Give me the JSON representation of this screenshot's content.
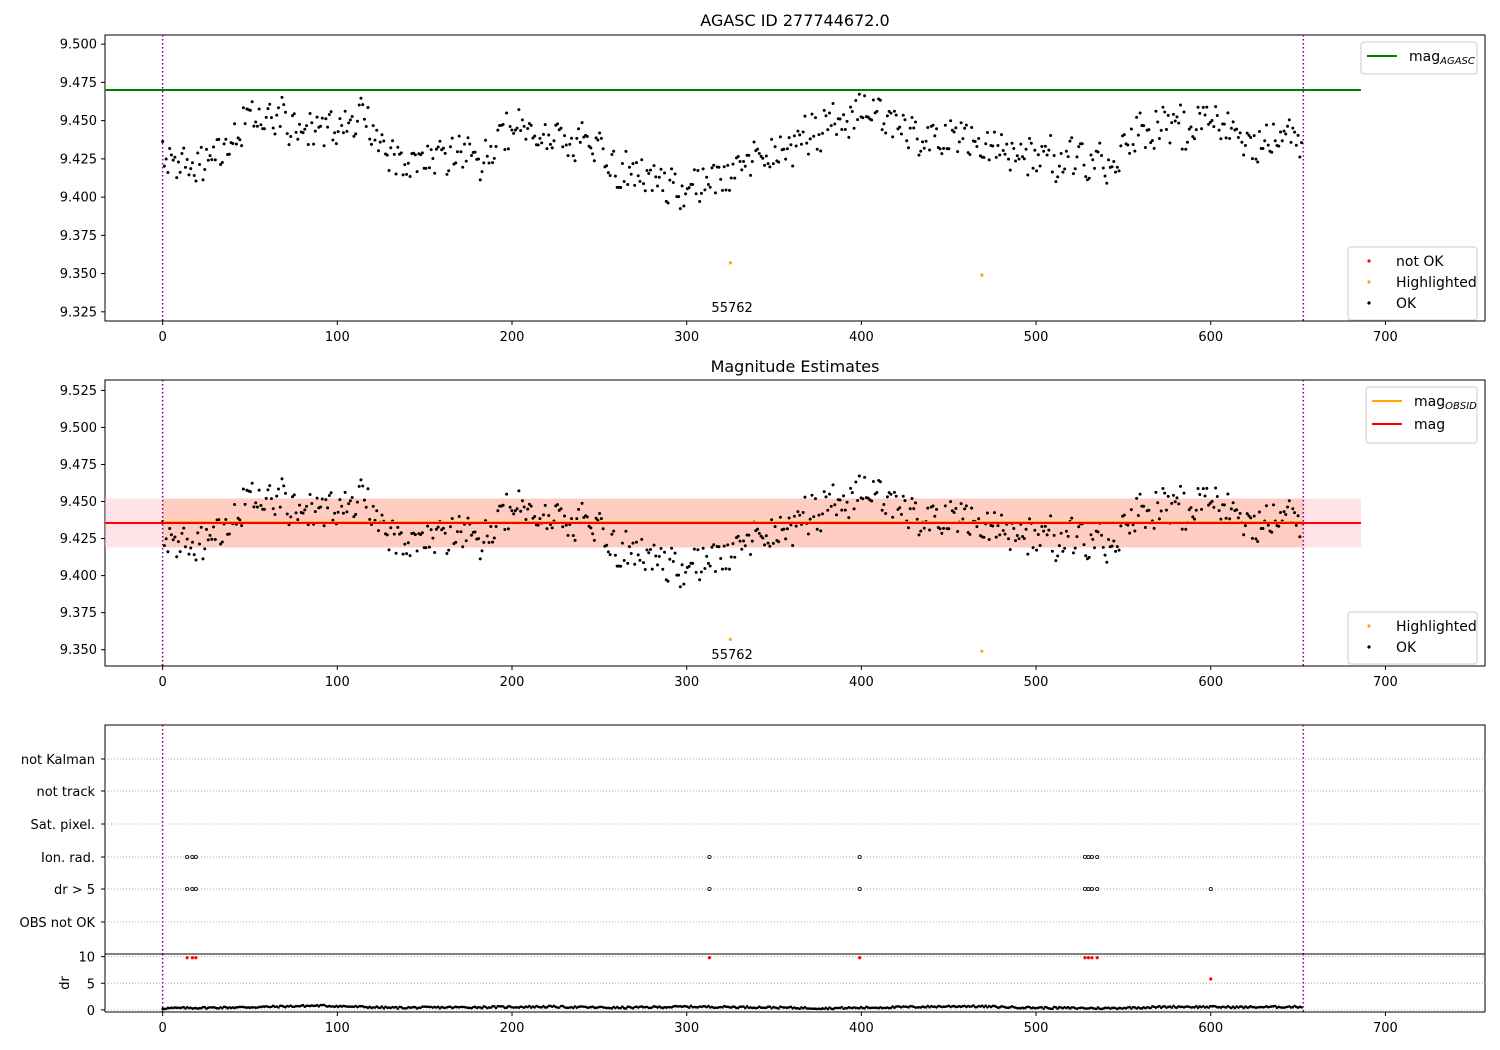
{
  "chart_data": [
    {
      "type": "scatter",
      "title": "AGASC ID 277744672.0",
      "xlim": [
        -33,
        757
      ],
      "ylim": [
        9.319,
        9.506
      ],
      "xticks": [
        0,
        100,
        200,
        300,
        400,
        500,
        600,
        700
      ],
      "yticks": [
        9.325,
        9.35,
        9.375,
        9.4,
        9.425,
        9.45,
        9.475,
        9.5
      ],
      "yticklabels": [
        "9.325",
        "9.350",
        "9.375",
        "9.400",
        "9.425",
        "9.450",
        "9.475",
        "9.500"
      ],
      "vlines": [
        0,
        653
      ],
      "vline_color": "#800080",
      "hline": {
        "label": "mag",
        "label_sub": "AGASC",
        "y": 9.47,
        "x_range": [
          -33,
          686
        ],
        "color": "#008000"
      },
      "annotation": {
        "text": "55762",
        "x": 326,
        "y": 9.328
      },
      "highlighted_points": [
        {
          "x": 325,
          "y": 9.357
        },
        {
          "x": 469,
          "y": 9.349
        }
      ],
      "legend_upper": [
        {
          "label": "mag",
          "sub": "AGASC",
          "kind": "line",
          "color": "#008000"
        }
      ],
      "legend_lower": [
        {
          "label": "not OK",
          "kind": "marker",
          "color": "#ff0000"
        },
        {
          "label": "Highlighted",
          "kind": "marker",
          "color": "#ffa500"
        },
        {
          "label": "OK",
          "kind": "marker",
          "color": "#000000"
        }
      ],
      "series": [
        {
          "name": "OK",
          "color": "#000000",
          "keypoints_x": [
            0,
            10,
            20,
            30,
            45,
            55,
            65,
            80,
            95,
            110,
            125,
            140,
            160,
            180,
            200,
            220,
            240,
            260,
            280,
            300,
            320,
            340,
            360,
            380,
            400,
            420,
            440,
            460,
            480,
            500,
            520,
            540,
            560,
            580,
            600,
            620,
            640,
            653
          ],
          "keypoints_y": [
            9.425,
            9.42,
            9.42,
            9.425,
            9.445,
            9.455,
            9.455,
            9.445,
            9.445,
            9.455,
            9.435,
            9.42,
            9.43,
            9.425,
            9.445,
            9.44,
            9.435,
            9.42,
            9.41,
            9.405,
            9.415,
            9.425,
            9.435,
            9.445,
            9.455,
            9.45,
            9.435,
            9.44,
            9.43,
            9.425,
            9.425,
            9.42,
            9.445,
            9.445,
            9.45,
            9.435,
            9.44,
            9.44
          ],
          "spread": 0.012,
          "n_points": 650
        }
      ]
    },
    {
      "type": "scatter",
      "title": "Magnitude Estimates",
      "xlim": [
        -33,
        757
      ],
      "ylim": [
        9.339,
        9.532
      ],
      "xticks": [
        0,
        100,
        200,
        300,
        400,
        500,
        600,
        700
      ],
      "yticks": [
        9.35,
        9.375,
        9.4,
        9.425,
        9.45,
        9.475,
        9.5,
        9.525
      ],
      "yticklabels": [
        "9.350",
        "9.375",
        "9.400",
        "9.425",
        "9.450",
        "9.475",
        "9.500",
        "9.525"
      ],
      "vlines": [
        0,
        653
      ],
      "vline_color": "#800080",
      "hline": {
        "label": "mag",
        "y": 9.4355,
        "x_range": [
          -33,
          686
        ],
        "color": "#ff0000"
      },
      "band_mag": {
        "y_low": 9.419,
        "y_high": 9.452,
        "color": "#ffc0cb"
      },
      "band_obsid": {
        "y_low": 9.419,
        "y_high": 9.452,
        "x_range": [
          0,
          653
        ],
        "color": "#ffa07a"
      },
      "obsid_line": {
        "label": "mag",
        "label_sub": "OBSID",
        "y": 9.436,
        "x_range": [
          0,
          653
        ],
        "color": "#ffa500"
      },
      "annotation": {
        "text": "55762",
        "x": 326,
        "y": 9.347
      },
      "highlighted_points": [
        {
          "x": 325,
          "y": 9.357
        },
        {
          "x": 469,
          "y": 9.349
        }
      ],
      "legend_upper": [
        {
          "label": "mag",
          "sub": "OBSID",
          "kind": "line",
          "color": "#ffa500"
        },
        {
          "label": "mag",
          "kind": "line",
          "color": "#ff0000"
        }
      ],
      "legend_lower": [
        {
          "label": "Highlighted",
          "kind": "marker",
          "color": "#ffa500"
        },
        {
          "label": "OK",
          "kind": "marker",
          "color": "#000000"
        }
      ],
      "series": [
        {
          "name": "OK",
          "color": "#000000",
          "same_as": "panel_1"
        }
      ]
    },
    {
      "type": "scatter",
      "title": "",
      "xlim": [
        -33,
        757
      ],
      "category_rows": [
        "not Kalman",
        "not track",
        "Sat. pixel.",
        "Ion. rad.",
        "dr > 5",
        "OBS not OK"
      ],
      "flags": {
        "Ion. rad.": [
          14,
          17,
          19,
          313,
          399,
          528,
          530,
          532,
          535
        ],
        "dr > 5": [
          14,
          17,
          19,
          313,
          399,
          528,
          530,
          532,
          535,
          600
        ],
        "OBS not OK": []
      }
    },
    {
      "type": "scatter",
      "title": "",
      "ylabel": "dr",
      "xlim": [
        -33,
        757
      ],
      "ylim": [
        -0.4,
        10.5
      ],
      "xticks": [
        0,
        100,
        200,
        300,
        400,
        500,
        600,
        700
      ],
      "yticks": [
        0,
        5,
        10
      ],
      "yticklabels": [
        "0",
        "5",
        "10"
      ],
      "vlines": [
        0,
        653
      ],
      "vline_color": "#800080",
      "large_dr_points": [
        {
          "x": 14,
          "y": 9.8
        },
        {
          "x": 17,
          "y": 9.8
        },
        {
          "x": 19,
          "y": 9.8
        },
        {
          "x": 313,
          "y": 9.8
        },
        {
          "x": 399,
          "y": 9.8
        },
        {
          "x": 528,
          "y": 9.8
        },
        {
          "x": 530,
          "y": 9.8
        },
        {
          "x": 532,
          "y": 9.8
        },
        {
          "x": 535,
          "y": 9.8
        },
        {
          "x": 600,
          "y": 5.8
        }
      ],
      "series": [
        {
          "name": "dr",
          "color": "#000000",
          "keypoints_x": [
            0,
            50,
            90,
            130,
            180,
            220,
            260,
            300,
            340,
            380,
            420,
            460,
            500,
            540,
            580,
            620,
            653
          ],
          "keypoints_y": [
            0.3,
            0.5,
            0.8,
            0.4,
            0.5,
            0.6,
            0.4,
            0.6,
            0.5,
            0.3,
            0.5,
            0.7,
            0.4,
            0.3,
            0.6,
            0.5,
            0.6
          ],
          "n_points": 650
        }
      ]
    }
  ]
}
